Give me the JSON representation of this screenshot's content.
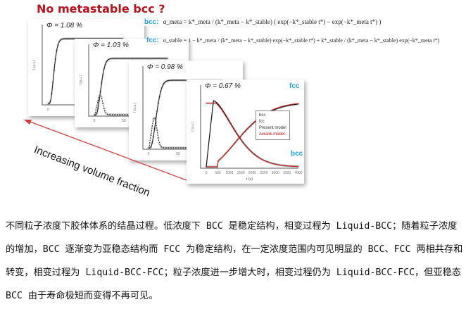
{
  "figure": {
    "title": "No metastable bcc ?",
    "equations": {
      "bcc_label": "bcc:",
      "bcc_formula": "α_meta = k*_meta / (k*_meta − k*_stable) ( exp(−k*_stable t*) − exp(−k*_meta t*) )",
      "fcc_label": "fcc:",
      "fcc_formula": "α_stable = 1 − k*_meta / (k*_meta − k*_stable) exp(−k*_stable t*) + k*_stable / (k*_meta − k*_stable) exp(−k*_meta t*)"
    },
    "panels": [
      {
        "phi": "Φ = 1.08 %",
        "ylabel": "I (a.u.)",
        "xticks": [
          "0",
          "50"
        ]
      },
      {
        "phi": "Φ = 1.03 %",
        "ylabel": "I (a.u.)",
        "xticks": [
          "0",
          "50",
          "100"
        ]
      },
      {
        "phi": "Φ = 0.98 %",
        "ylabel": "I (a.u.)",
        "xticks": [
          "0",
          "50",
          "100"
        ],
        "xlabel": "t"
      },
      {
        "phi": "Φ = 0.67 %",
        "ylabel": "I (a.u.)",
        "xlabel": "t (s)",
        "xticks": [
          "0",
          "500",
          "1000",
          "1500",
          "2000",
          "2500",
          "3000",
          "3500",
          "4000"
        ],
        "fcc_tag": "fcc",
        "bcc_tag": "bcc",
        "legend": [
          "bcc",
          "fcc",
          "Present model",
          "Avrami model"
        ]
      }
    ],
    "arrow_label": "Increasing volume fraction",
    "colors": {
      "title": "#b5141c",
      "tag": "#1ea0e6",
      "avrami": "#e02020",
      "arrow": "#d04040"
    }
  },
  "caption": "不同粒子浓度下胶体体系的结晶过程。低浓度下 BCC 是稳定结构，相变过程为 Liquid-BCC；随着粒子浓度的增加，BCC 逐渐变为亚稳态结构而 FCC 为稳定结构，在一定浓度范围内可见明显的 BCC、FCC 两相共存和转变，相变过程为 Liquid-BCC-FCC；粒子浓度进一步增大时，相变过程仍为 Liquid-BCC-FCC，但亚稳态 BCC 由于寿命极短而变得不再可见。"
}
